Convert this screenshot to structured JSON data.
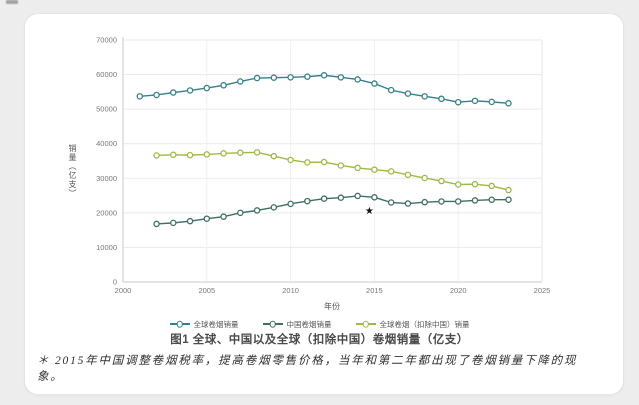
{
  "page": {
    "background_color": "#ededed",
    "card_color": "#ffffff"
  },
  "figure": {
    "caption": "图1 全球、中国以及全球（扣除中国）卷烟销量（亿支）",
    "footnote": "＊ 2015年中国调整卷烟税率，提高卷烟零售价格，当年和第二年都出现了卷烟销量下降的现象。"
  },
  "chart_data": {
    "type": "line",
    "title": "图1 全球、中国以及全球（扣除中国）卷烟销量（亿支）",
    "xlabel": "年份",
    "ylabel": "销量（亿支）",
    "xlim": [
      2000,
      2025
    ],
    "ylim": [
      0,
      70000
    ],
    "xticks": [
      2000,
      2005,
      2010,
      2015,
      2020,
      2025
    ],
    "yticks": [
      0,
      10000,
      20000,
      30000,
      40000,
      50000,
      60000,
      70000
    ],
    "grid": true,
    "legend_position": "bottom",
    "marker": "open-circle",
    "series": [
      {
        "name": "全球卷烟销量",
        "color": "#35808a",
        "years": [
          2001,
          2002,
          2003,
          2004,
          2005,
          2006,
          2007,
          2008,
          2009,
          2010,
          2011,
          2012,
          2013,
          2014,
          2015,
          2016,
          2017,
          2018,
          2019,
          2020,
          2021,
          2022,
          2023
        ],
        "values": [
          53700,
          54100,
          54800,
          55400,
          56100,
          56900,
          58000,
          59000,
          59100,
          59200,
          59400,
          59800,
          59200,
          58600,
          57400,
          55500,
          54500,
          53700,
          53000,
          52000,
          52400,
          52100,
          51700
        ]
      },
      {
        "name": "中国卷烟销量",
        "color": "#3e6f63",
        "years": [
          2002,
          2003,
          2004,
          2005,
          2006,
          2007,
          2008,
          2009,
          2010,
          2011,
          2012,
          2013,
          2014,
          2015,
          2016,
          2017,
          2018,
          2019,
          2020,
          2021,
          2022,
          2023
        ],
        "values": [
          16800,
          17100,
          17600,
          18300,
          18900,
          20000,
          20700,
          21600,
          22600,
          23400,
          24100,
          24400,
          24900,
          24500,
          23000,
          22700,
          23100,
          23300,
          23300,
          23600,
          23800,
          23800
        ]
      },
      {
        "name": "全球卷烟（扣除中国）销量",
        "color": "#9cba45",
        "years": [
          2002,
          2003,
          2004,
          2005,
          2006,
          2007,
          2008,
          2009,
          2010,
          2011,
          2012,
          2013,
          2014,
          2015,
          2016,
          2017,
          2018,
          2019,
          2020,
          2021,
          2022,
          2023
        ],
        "values": [
          36600,
          36800,
          36700,
          36900,
          37200,
          37400,
          37500,
          36400,
          35300,
          34600,
          34700,
          33700,
          33000,
          32500,
          32000,
          31000,
          30100,
          29200,
          28200,
          28300,
          27800,
          26600
        ]
      }
    ],
    "annotation": {
      "symbol": "★",
      "year": 2014.7,
      "value": 20700
    }
  }
}
